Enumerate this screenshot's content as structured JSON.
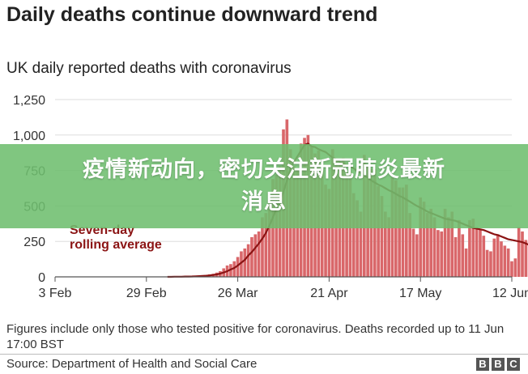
{
  "header": {
    "title": "Daily deaths continue downward trend",
    "subtitle": "UK daily reported deaths with coronavirus"
  },
  "overlay": {
    "line1": "疫情新动向，密切关注新冠肺炎最新",
    "line2": "消息"
  },
  "footer": {
    "note": "Figures include only those who tested positive for coronavirus. Deaths recorded up to 11 Jun 17:00 BST",
    "source": "Source: Department of Health and Social Care",
    "logo_letters": [
      "B",
      "B",
      "C"
    ]
  },
  "colors": {
    "bars": "#d9676a",
    "average_line": "#8b1414",
    "annotation": "#8b1414",
    "grid": "#dddddd",
    "banner": "#6ebe6e"
  },
  "chart_data": {
    "type": "bar",
    "title": "UK daily reported deaths with coronavirus",
    "x_ticks": [
      "3 Feb",
      "29 Feb",
      "26 Mar",
      "21 Apr",
      "17 May",
      "12 Jun"
    ],
    "y_ticks": [
      "0",
      "250",
      "500",
      "750",
      "1,000",
      "1,250"
    ],
    "ylim": [
      0,
      1250
    ],
    "x_range": [
      "2020-02-03",
      "2020-06-12"
    ],
    "grid": true,
    "annotation": [
      "Seven-day",
      "rolling average"
    ],
    "dates_start": "2020-03-06",
    "values": [
      1,
      0,
      1,
      1,
      2,
      1,
      3,
      5,
      6,
      8,
      11,
      13,
      18,
      22,
      30,
      40,
      60,
      80,
      90,
      110,
      140,
      180,
      200,
      230,
      280,
      300,
      320,
      420,
      450,
      560,
      690,
      720,
      780,
      1040,
      1110,
      900,
      780,
      760,
      940,
      980,
      1000,
      920,
      870,
      890,
      760,
      650,
      620,
      900,
      830,
      790,
      840,
      740,
      740,
      590,
      540,
      460,
      860,
      780,
      760,
      760,
      640,
      570,
      460,
      420,
      700,
      680,
      630,
      630,
      650,
      450,
      340,
      300,
      560,
      530,
      450,
      480,
      420,
      330,
      320,
      480,
      420,
      460,
      280,
      400,
      300,
      200,
      400,
      410,
      350,
      340,
      290,
      190,
      180,
      270,
      300,
      250,
      220,
      200,
      110,
      130,
      350,
      320,
      260,
      250,
      160,
      140,
      180,
      220,
      190,
      180,
      150
    ],
    "average": [
      0,
      0,
      1,
      1,
      1,
      2,
      2,
      3,
      4,
      5,
      6,
      8,
      10,
      13,
      17,
      23,
      31,
      40,
      52,
      63,
      80,
      100,
      120,
      150,
      175,
      205,
      235,
      270,
      310,
      360,
      420,
      480,
      540,
      600,
      680,
      760,
      810,
      850,
      890,
      930,
      940,
      920,
      915,
      900,
      890,
      880,
      860,
      840,
      830,
      810,
      800,
      790,
      780,
      765,
      745,
      730,
      715,
      700,
      680,
      665,
      650,
      640,
      625,
      610,
      600,
      585,
      570,
      560,
      545,
      530,
      515,
      500,
      488,
      475,
      460,
      450,
      440,
      430,
      420,
      410,
      405,
      400,
      395,
      385,
      375,
      365,
      355,
      345,
      340,
      335,
      330,
      320,
      310,
      300,
      295,
      285,
      275,
      265,
      260,
      255,
      250,
      245,
      235,
      225,
      215,
      210,
      205,
      200,
      195,
      190,
      185
    ]
  }
}
